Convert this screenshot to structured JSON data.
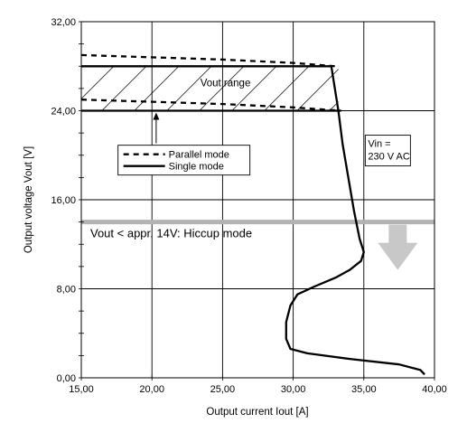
{
  "chart_data": {
    "type": "line",
    "xlabel": "Output current Iout [A]",
    "ylabel": "Output voltage Vout [V]",
    "xlim": [
      15,
      40
    ],
    "ylim": [
      0,
      32
    ],
    "x_ticks": [
      "15,00",
      "20,00",
      "25,00",
      "30,00",
      "35,00",
      "40,00"
    ],
    "y_ticks": [
      "0,00",
      "8,00",
      "16,00",
      "24,00",
      "32,00"
    ],
    "x_tick_values": [
      15,
      20,
      25,
      30,
      35,
      40
    ],
    "y_tick_values": [
      0,
      8,
      16,
      24,
      32
    ],
    "grid": true,
    "legend_position": "left-middle",
    "legend": [
      {
        "label": "Parallel mode",
        "style": "dashed"
      },
      {
        "label": "Single mode",
        "style": "solid"
      }
    ],
    "annotations": {
      "vout_range": "Vout range",
      "vin_line1": "Vin =",
      "vin_line2": "230 V AC",
      "hiccup": "Vout < appr. 14V: Hiccup mode"
    },
    "hiccup_threshold_v": 14,
    "series": [
      {
        "name": "Single mode",
        "style": "solid",
        "curves": [
          [
            [
              15.0,
              24.0
            ],
            [
              33.3,
              24.0
            ]
          ],
          [
            [
              15.0,
              28.0
            ],
            [
              32.7,
              28.0
            ],
            [
              33.2,
              24.0
            ],
            [
              33.5,
              21.0
            ],
            [
              33.9,
              18.0
            ],
            [
              34.3,
              15.0
            ],
            [
              34.7,
              12.5
            ],
            [
              35.0,
              11.3
            ],
            [
              34.8,
              10.5
            ],
            [
              34.0,
              9.7
            ],
            [
              33.0,
              9.0
            ],
            [
              31.5,
              8.2
            ],
            [
              30.3,
              7.5
            ],
            [
              29.8,
              6.5
            ],
            [
              29.5,
              5.0
            ],
            [
              29.5,
              3.5
            ],
            [
              29.8,
              2.6
            ],
            [
              31.0,
              2.2
            ],
            [
              34.0,
              1.7
            ],
            [
              37.5,
              1.2
            ],
            [
              39.0,
              0.7
            ],
            [
              39.3,
              0.3
            ]
          ]
        ]
      },
      {
        "name": "Parallel mode",
        "style": "dashed",
        "curves": [
          [
            [
              15.0,
              29.0
            ],
            [
              20.0,
              28.8
            ],
            [
              25.0,
              28.6
            ],
            [
              30.0,
              28.3
            ],
            [
              33.0,
              28.0
            ]
          ],
          [
            [
              15.0,
              25.0
            ],
            [
              20.0,
              24.8
            ],
            [
              25.0,
              24.6
            ],
            [
              30.0,
              24.3
            ],
            [
              33.4,
              24.0
            ]
          ]
        ]
      }
    ],
    "colors": {
      "line": "#000000",
      "grid": "#000000",
      "hiccup_band": "#b3b3b3",
      "arrow": "#c8c8c8"
    }
  }
}
